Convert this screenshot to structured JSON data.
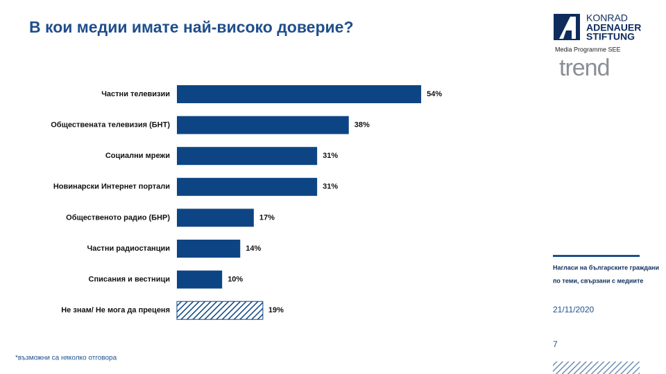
{
  "chart_data": {
    "type": "bar",
    "orientation": "horizontal",
    "title": "В кои медии имате най-високо доверие?",
    "categories": [
      "Частни телевизии",
      "Обществената телевизия (БНТ)",
      "Социални мрежи",
      "Новинарски Интернет портали",
      "Общественото радио (БНР)",
      "Частни радиостанции",
      "Списания и вестници",
      "Не знам/ Не мога да преценя"
    ],
    "values": [
      54,
      38,
      31,
      31,
      17,
      14,
      10,
      19
    ],
    "value_labels": [
      "54%",
      "38%",
      "31%",
      "31%",
      "17%",
      "14%",
      "10%",
      "19%"
    ],
    "styles": [
      "solid",
      "solid",
      "solid",
      "solid",
      "solid",
      "solid",
      "solid",
      "hatched"
    ],
    "color": "#0d4584",
    "footnote": "*възможни са няколко отговора"
  },
  "logo": {
    "line1": "KONRAD",
    "line2": "ADENAUER",
    "line3": "STIFTUNG",
    "programme": "Media Programme SEE",
    "trend": "trend"
  },
  "sidebar": {
    "lines": [
      "Нагласи на българските граждани",
      "по теми, свързани с медиите"
    ],
    "date": "21/11/2020",
    "page": "7"
  }
}
